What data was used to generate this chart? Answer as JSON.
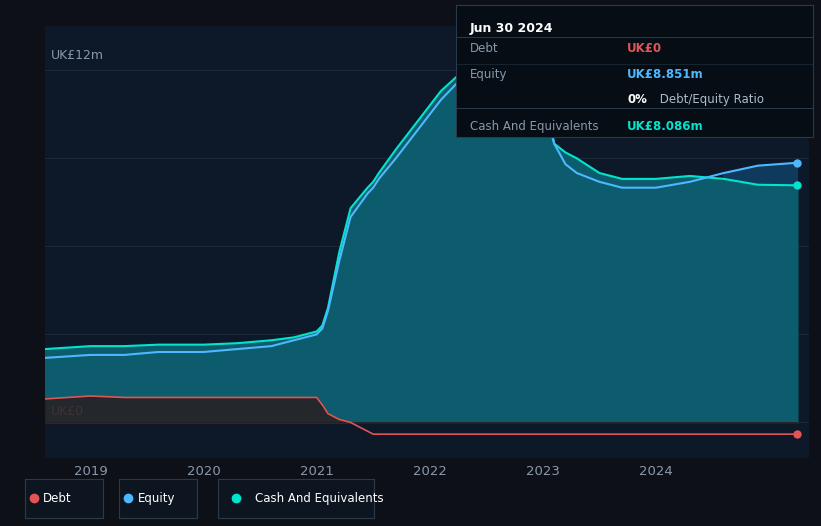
{
  "bg_color": "#0d1117",
  "plot_bg_color": "#0d1828",
  "ylabel_top": "UK£12m",
  "ylabel_bottom": "UK£0",
  "x_ticks": [
    2019,
    2020,
    2021,
    2022,
    2023,
    2024
  ],
  "x_min": 2018.6,
  "x_max": 2025.35,
  "y_min": -1.2,
  "y_max": 13.5,
  "debt_color": "#e05555",
  "equity_color": "#4db8ff",
  "cash_color": "#00e5cc",
  "equity_fill": "#0f3a5c",
  "cash_fill": "#0d5c6e",
  "grid_color": "#1e2d3d",
  "tooltip_bg": "#060d14",
  "tooltip_border": "#2a3a4a",
  "legend_bg": "#0d1520",
  "legend_border": "#2a3a4a",
  "time_points": [
    2018.6,
    2019.0,
    2019.3,
    2019.6,
    2020.0,
    2020.3,
    2020.6,
    2020.8,
    2021.0,
    2021.05,
    2021.1,
    2021.2,
    2021.3,
    2021.45,
    2021.5,
    2021.55,
    2021.7,
    2022.0,
    2022.1,
    2022.3,
    2022.45,
    2022.5,
    2022.55,
    2022.7,
    2023.0,
    2023.05,
    2023.1,
    2023.2,
    2023.3,
    2023.5,
    2023.7,
    2024.0,
    2024.3,
    2024.6,
    2024.9,
    2025.25
  ],
  "debt_values": [
    0.8,
    0.9,
    0.85,
    0.85,
    0.85,
    0.85,
    0.85,
    0.85,
    0.85,
    0.6,
    0.3,
    0.1,
    0.0,
    -0.3,
    -0.4,
    -0.4,
    -0.4,
    -0.4,
    -0.4,
    -0.4,
    -0.4,
    -0.4,
    -0.4,
    -0.4,
    -0.4,
    -0.4,
    -0.4,
    -0.4,
    -0.4,
    -0.4,
    -0.4,
    -0.4,
    -0.4,
    -0.4,
    -0.4,
    -0.4
  ],
  "equity_values": [
    2.2,
    2.3,
    2.3,
    2.4,
    2.4,
    2.5,
    2.6,
    2.8,
    3.0,
    3.2,
    3.8,
    5.5,
    7.0,
    7.8,
    8.0,
    8.3,
    9.0,
    10.5,
    11.0,
    11.8,
    12.0,
    11.8,
    11.5,
    11.4,
    11.4,
    10.5,
    9.5,
    8.8,
    8.5,
    8.2,
    8.0,
    8.0,
    8.2,
    8.5,
    8.75,
    8.85
  ],
  "cash_values": [
    2.5,
    2.6,
    2.6,
    2.65,
    2.65,
    2.7,
    2.8,
    2.9,
    3.1,
    3.3,
    3.9,
    5.8,
    7.3,
    8.0,
    8.2,
    8.5,
    9.3,
    10.8,
    11.3,
    12.0,
    12.1,
    11.9,
    11.7,
    11.55,
    11.5,
    10.2,
    9.5,
    9.2,
    9.0,
    8.5,
    8.3,
    8.3,
    8.4,
    8.3,
    8.1,
    8.08
  ],
  "tooltip_date": "Jun 30 2024",
  "tooltip_debt_label": "Debt",
  "tooltip_debt_val": "UK£0",
  "tooltip_equity_label": "Equity",
  "tooltip_equity_val": "UK£8.851m",
  "tooltip_ratio_pct": "0%",
  "tooltip_ratio_text": " Debt/Equity Ratio",
  "tooltip_cash_label": "Cash And Equivalents",
  "tooltip_cash_val": "UK£8.086m"
}
